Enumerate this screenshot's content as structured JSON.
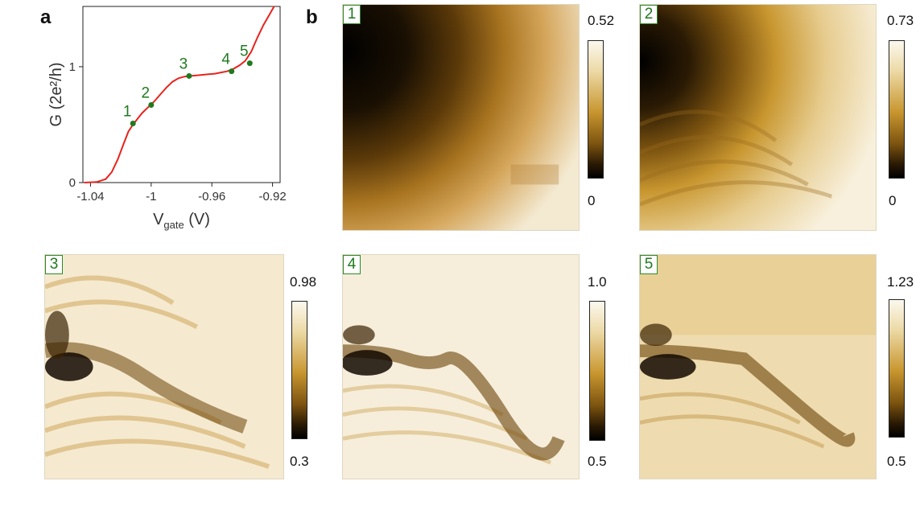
{
  "panel_labels": {
    "a": "a",
    "b": "b"
  },
  "chart_data": [
    {
      "type": "line",
      "panel": "a",
      "xlabel_main": "V",
      "xlabel_sub": "gate",
      "xlabel_unit": " (V)",
      "ylabel": "G (2e²/h)",
      "xlim": [
        -1.045,
        -0.915
      ],
      "ylim": [
        0,
        1.52
      ],
      "x_ticks": [
        -1.04,
        -1.0,
        -0.96,
        -0.92
      ],
      "x_tick_labels": [
        "-1.04",
        "-1",
        "-0.96",
        "-0.92"
      ],
      "y_ticks": [
        0,
        1
      ],
      "y_tick_labels": [
        "0",
        "1"
      ],
      "line_color": "#e8231d",
      "marker_color": "#1f7a1f",
      "series": [
        {
          "x": [
            -1.044,
            -1.036,
            -1.03,
            -1.026,
            -1.022,
            -1.018,
            -1.015,
            -1.012,
            -1.009,
            -1.006,
            -1.002,
            -0.998,
            -0.994,
            -0.99,
            -0.986,
            -0.982,
            -0.978,
            -0.974,
            -0.97,
            -0.966,
            -0.962,
            -0.958,
            -0.954,
            -0.95,
            -0.946,
            -0.942,
            -0.938,
            -0.934,
            -0.93,
            -0.926,
            -0.922,
            -0.919
          ],
          "y": [
            0.0,
            0.005,
            0.03,
            0.09,
            0.2,
            0.34,
            0.44,
            0.5,
            0.55,
            0.6,
            0.65,
            0.7,
            0.76,
            0.82,
            0.87,
            0.9,
            0.915,
            0.92,
            0.925,
            0.93,
            0.935,
            0.94,
            0.95,
            0.96,
            0.98,
            1.01,
            1.05,
            1.13,
            1.25,
            1.36,
            1.45,
            1.52
          ]
        }
      ],
      "points": [
        {
          "label": "1",
          "x": -1.012,
          "y": 0.51
        },
        {
          "label": "2",
          "x": -1.0,
          "y": 0.67
        },
        {
          "label": "3",
          "x": -0.975,
          "y": 0.92
        },
        {
          "label": "4",
          "x": -0.947,
          "y": 0.96
        },
        {
          "label": "5",
          "x": -0.935,
          "y": 1.03
        }
      ]
    },
    {
      "type": "heatmap",
      "panel": "b",
      "colorscale": [
        "#000000",
        "#7d5410",
        "#c8962f",
        "#ecd9a5",
        "#fbf8ee"
      ],
      "maps": [
        {
          "label": "1",
          "cbar_max": "0.52",
          "cbar_min": "0"
        },
        {
          "label": "2",
          "cbar_max": "0.73",
          "cbar_min": "0"
        },
        {
          "label": "3",
          "cbar_max": "0.98",
          "cbar_min": "0.3"
        },
        {
          "label": "4",
          "cbar_max": "1.0",
          "cbar_min": "0.5"
        },
        {
          "label": "5",
          "cbar_max": "1.23",
          "cbar_min": "0.5"
        }
      ]
    }
  ]
}
